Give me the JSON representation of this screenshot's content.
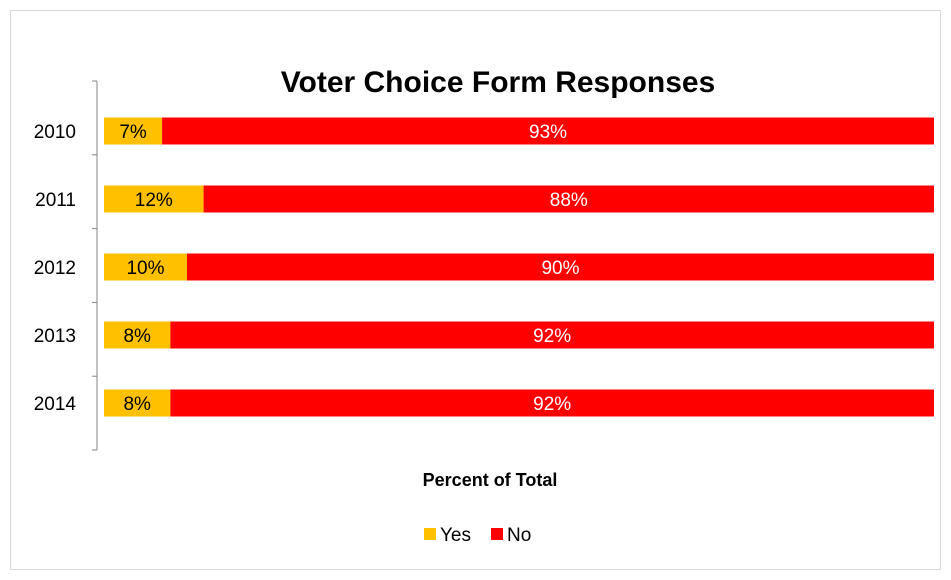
{
  "chart_data": {
    "type": "bar",
    "orientation": "horizontal",
    "stacked": true,
    "title": "Voter Choice Form Responses",
    "xlabel": "Percent of Total",
    "ylabel": "",
    "xlim": [
      0,
      100
    ],
    "categories": [
      "2010",
      "2011",
      "2012",
      "2013",
      "2014"
    ],
    "series": [
      {
        "name": "Yes",
        "color": "#ffc000",
        "label_color": "#000000",
        "values": [
          7,
          12,
          10,
          8,
          8
        ],
        "labels": [
          "7%",
          "12%",
          "10%",
          "8%",
          "8%"
        ]
      },
      {
        "name": "No",
        "color": "#ff0000",
        "label_color": "#ffffff",
        "values": [
          93,
          88,
          90,
          92,
          92
        ],
        "labels": [
          "93%",
          "88%",
          "90%",
          "92%",
          "92%"
        ]
      }
    ],
    "grid": false,
    "legend_position": "bottom"
  }
}
